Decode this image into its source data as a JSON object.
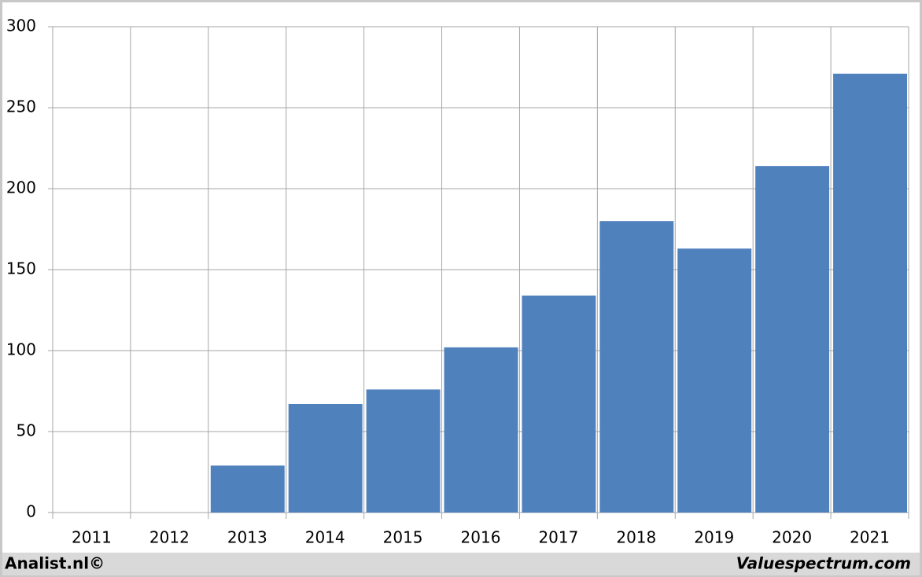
{
  "chart_data": {
    "type": "bar",
    "categories": [
      "2011",
      "2012",
      "2013",
      "2014",
      "2015",
      "2016",
      "2017",
      "2018",
      "2019",
      "2020",
      "2021"
    ],
    "values": [
      null,
      null,
      29,
      67,
      76,
      102,
      134,
      180,
      163,
      214,
      271
    ],
    "color": "#4f81bd",
    "ylim": [
      0,
      300
    ],
    "yticks": [
      0,
      50,
      100,
      150,
      200,
      250,
      300
    ],
    "grid": true
  },
  "footer": {
    "left": "Analist.nl©",
    "right": "Valuespectrum.com"
  }
}
